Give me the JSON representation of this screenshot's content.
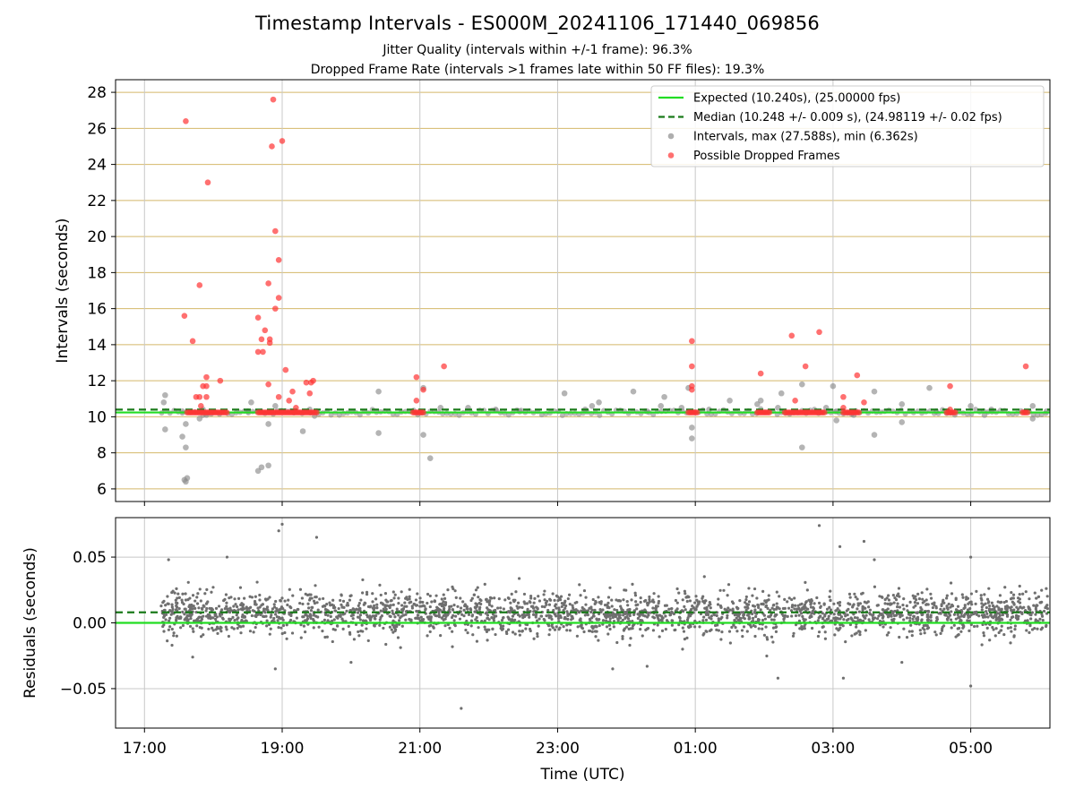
{
  "title": "Timestamp Intervals - ES000M_20241106_171440_069856",
  "subtitles": [
    "Jitter Quality (intervals within +/-1 frame): 96.3%",
    "Dropped Frame Rate (intervals >1 frames late within 50 FF files): 19.3%"
  ],
  "colors": {
    "expected": "#22dd22",
    "median": "#1a7a1a",
    "intervals": "#8c8c8c",
    "dropped": "#ff3333",
    "hgrid_top": "#d4b86a",
    "grid": "#c8c8c8"
  },
  "chart_data": [
    {
      "type": "scatter",
      "ylabel": "Intervals (seconds)",
      "yticks": [
        6,
        8,
        10,
        12,
        14,
        16,
        18,
        20,
        22,
        24,
        26,
        28
      ],
      "ylim": [
        5.3,
        28.7
      ],
      "x_unit": "hours after 17:00 UTC (timestamps from 17:14:40 onward)",
      "xlim": [
        -0.42,
        13.15
      ],
      "legend": {
        "placement": "upper right",
        "entries": [
          {
            "label": "Expected (10.240s), (25.00000 fps)",
            "marker": "solid-line",
            "color": "expected"
          },
          {
            "label": "Median (10.248 +/- 0.009 s), (24.98119 +/- 0.02 fps)",
            "marker": "dashed-line",
            "color": "median"
          },
          {
            "label": "Intervals, max (27.588s), min (6.362s)",
            "marker": "dot",
            "color": "intervals"
          },
          {
            "label": "Possible Dropped Frames",
            "marker": "dot",
            "color": "dropped"
          }
        ]
      },
      "reference_lines": [
        {
          "name": "Expected",
          "y": 10.24
        },
        {
          "name": "Median",
          "y": 10.248
        }
      ],
      "series": [
        {
          "name": "Intervals",
          "points": [
            [
              0.28,
              10.8
            ],
            [
              0.3,
              11.2
            ],
            [
              0.3,
              9.3
            ],
            [
              0.55,
              10.3
            ],
            [
              0.55,
              8.9
            ],
            [
              0.58,
              6.5
            ],
            [
              0.6,
              6.4
            ],
            [
              0.62,
              6.6
            ],
            [
              0.6,
              8.3
            ],
            [
              0.6,
              9.6
            ],
            [
              0.8,
              9.9
            ],
            [
              0.85,
              10.4
            ],
            [
              0.9,
              10.1
            ],
            [
              1.5,
              10.3
            ],
            [
              1.55,
              10.8
            ],
            [
              2.4,
              10.4
            ],
            [
              1.65,
              7.0
            ],
            [
              1.7,
              7.2
            ],
            [
              1.8,
              7.3
            ],
            [
              1.8,
              9.6
            ],
            [
              1.9,
              10.6
            ],
            [
              2.3,
              9.2
            ],
            [
              2.5,
              10.3
            ],
            [
              3.4,
              11.4
            ],
            [
              3.4,
              9.1
            ],
            [
              4.05,
              11.6
            ],
            [
              4.05,
              9.0
            ],
            [
              4.15,
              7.7
            ],
            [
              4.3,
              10.5
            ],
            [
              4.7,
              10.5
            ],
            [
              5.1,
              10.4
            ],
            [
              5.45,
              10.3
            ],
            [
              6.1,
              11.3
            ],
            [
              6.4,
              10.4
            ],
            [
              6.5,
              10.6
            ],
            [
              6.6,
              10.8
            ],
            [
              7.1,
              11.4
            ],
            [
              7.3,
              10.3
            ],
            [
              7.5,
              10.6
            ],
            [
              7.55,
              11.1
            ],
            [
              7.8,
              10.5
            ],
            [
              7.9,
              11.6
            ],
            [
              7.95,
              9.4
            ],
            [
              7.95,
              8.8
            ],
            [
              8.2,
              10.4
            ],
            [
              8.5,
              10.9
            ],
            [
              8.9,
              10.7
            ],
            [
              8.95,
              10.9
            ],
            [
              9.2,
              10.5
            ],
            [
              9.25,
              11.3
            ],
            [
              9.55,
              11.8
            ],
            [
              9.55,
              8.3
            ],
            [
              9.9,
              10.5
            ],
            [
              10.0,
              11.7
            ],
            [
              10.05,
              10.3
            ],
            [
              10.05,
              9.8
            ],
            [
              10.3,
              10.1
            ],
            [
              10.6,
              11.4
            ],
            [
              10.6,
              9.0
            ],
            [
              11.0,
              9.7
            ],
            [
              11.0,
              10.7
            ],
            [
              11.4,
              11.6
            ],
            [
              11.5,
              10.3
            ],
            [
              12.0,
              10.6
            ],
            [
              12.2,
              10.1
            ],
            [
              12.3,
              10.4
            ],
            [
              12.9,
              9.9
            ],
            [
              12.9,
              10.6
            ],
            [
              13.1,
              10.3
            ]
          ]
        },
        {
          "name": "Possible Dropped Frames",
          "points": [
            [
              0.58,
              15.6
            ],
            [
              0.6,
              26.4
            ],
            [
              0.7,
              14.2
            ],
            [
              0.75,
              11.1
            ],
            [
              0.8,
              11.1
            ],
            [
              0.8,
              17.3
            ],
            [
              0.82,
              10.6
            ],
            [
              0.85,
              11.7
            ],
            [
              0.9,
              11.7
            ],
            [
              0.92,
              23.0
            ],
            [
              0.9,
              12.2
            ],
            [
              0.9,
              11.1
            ],
            [
              1.1,
              12.0
            ],
            [
              1.65,
              15.5
            ],
            [
              1.65,
              13.6
            ],
            [
              1.7,
              14.3
            ],
            [
              1.72,
              13.6
            ],
            [
              1.75,
              14.8
            ],
            [
              1.8,
              17.4
            ],
            [
              1.8,
              11.8
            ],
            [
              1.82,
              14.3
            ],
            [
              1.82,
              14.1
            ],
            [
              1.85,
              25.0
            ],
            [
              1.87,
              27.6
            ],
            [
              1.9,
              20.3
            ],
            [
              1.9,
              16.0
            ],
            [
              1.95,
              18.7
            ],
            [
              1.95,
              16.6
            ],
            [
              1.95,
              11.1
            ],
            [
              2.0,
              25.3
            ],
            [
              2.05,
              12.6
            ],
            [
              2.1,
              10.9
            ],
            [
              2.15,
              11.4
            ],
            [
              2.2,
              10.5
            ],
            [
              2.35,
              11.9
            ],
            [
              2.4,
              11.3
            ],
            [
              2.42,
              11.9
            ],
            [
              2.45,
              12.0
            ],
            [
              3.95,
              12.2
            ],
            [
              3.95,
              10.9
            ],
            [
              4.05,
              11.5
            ],
            [
              4.35,
              12.8
            ],
            [
              7.95,
              14.2
            ],
            [
              7.95,
              12.8
            ],
            [
              7.95,
              11.7
            ],
            [
              7.95,
              11.5
            ],
            [
              8.95,
              12.4
            ],
            [
              9.4,
              14.5
            ],
            [
              9.45,
              10.9
            ],
            [
              9.6,
              12.8
            ],
            [
              9.8,
              14.7
            ],
            [
              10.15,
              11.1
            ],
            [
              10.15,
              10.5
            ],
            [
              10.35,
              12.3
            ],
            [
              10.45,
              10.8
            ],
            [
              11.7,
              11.7
            ],
            [
              11.7,
              10.4
            ],
            [
              12.8,
              12.8
            ]
          ],
          "clusters_at_expected": [
            {
              "x_from": 0.62,
              "x_to": 1.2,
              "y": 10.24
            },
            {
              "x_from": 1.65,
              "x_to": 2.5,
              "y": 10.24
            },
            {
              "x_from": 3.9,
              "x_to": 4.05,
              "y": 10.24
            },
            {
              "x_from": 7.9,
              "x_to": 8.05,
              "y": 10.24
            },
            {
              "x_from": 8.9,
              "x_to": 9.1,
              "y": 10.24
            },
            {
              "x_from": 9.3,
              "x_to": 9.9,
              "y": 10.24
            },
            {
              "x_from": 10.15,
              "x_to": 10.4,
              "y": 10.24
            },
            {
              "x_from": 11.65,
              "x_to": 11.8,
              "y": 10.24
            },
            {
              "x_from": 12.75,
              "x_to": 12.85,
              "y": 10.24
            }
          ]
        }
      ]
    },
    {
      "type": "scatter",
      "xlabel": "Time (UTC)",
      "ylabel": "Residuals (seconds)",
      "xticks": [
        "17:00",
        "19:00",
        "21:00",
        "23:00",
        "01:00",
        "03:00",
        "05:00"
      ],
      "xtick_hours": [
        0,
        2,
        4,
        6,
        8,
        10,
        12
      ],
      "yticks": [
        0.05,
        0.0,
        -0.05
      ],
      "ytick_labels": [
        "0.05",
        "0.00",
        "−0.05"
      ],
      "ylim": [
        -0.08,
        0.08
      ],
      "reference_lines": [
        {
          "name": "Expected",
          "y": 0.0
        },
        {
          "name": "Median",
          "y": 0.008
        }
      ],
      "series": [
        {
          "name": "Residuals",
          "distribution": {
            "x_from": 0.24,
            "x_to": 13.15,
            "center": 0.007,
            "sd": 0.008,
            "count": 2600
          },
          "points": [
            [
              2.0,
              0.075
            ],
            [
              1.95,
              0.07
            ],
            [
              2.5,
              0.065
            ],
            [
              9.8,
              0.074
            ],
            [
              10.1,
              0.058
            ],
            [
              10.45,
              0.062
            ],
            [
              10.6,
              0.048
            ],
            [
              12.0,
              0.05
            ],
            [
              0.35,
              0.048
            ],
            [
              1.2,
              0.05
            ],
            [
              3.0,
              -0.03
            ],
            [
              4.6,
              -0.065
            ],
            [
              6.8,
              -0.035
            ],
            [
              7.3,
              -0.033
            ],
            [
              9.2,
              -0.042
            ],
            [
              10.15,
              -0.042
            ],
            [
              11.0,
              -0.03
            ],
            [
              12.0,
              -0.048
            ],
            [
              0.4,
              -0.017
            ],
            [
              0.7,
              -0.026
            ],
            [
              1.9,
              -0.035
            ]
          ]
        }
      ]
    }
  ]
}
